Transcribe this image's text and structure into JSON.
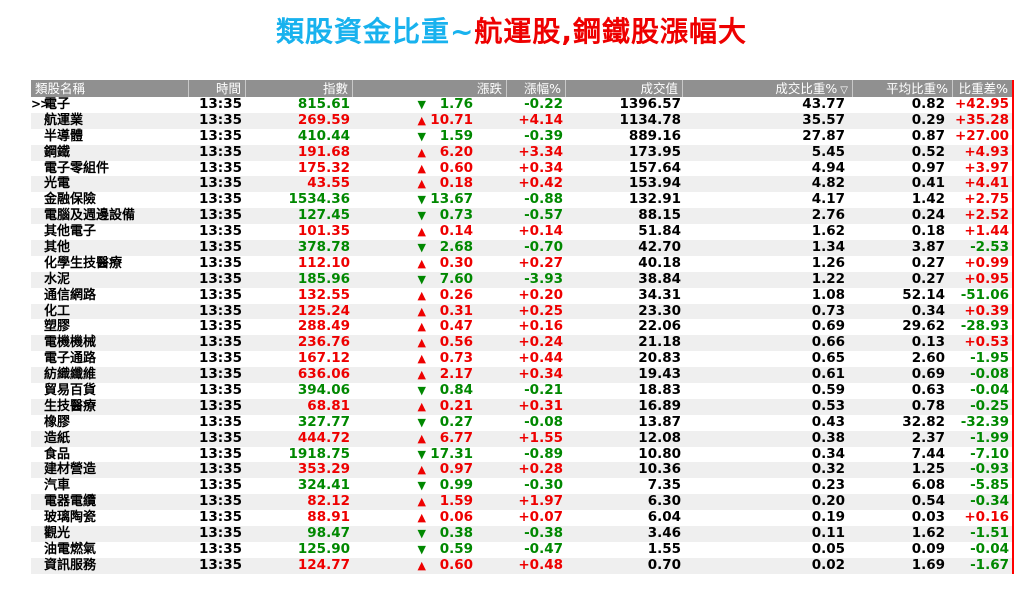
{
  "title": {
    "part1": "類股資金比重~",
    "part2": "航運股,鋼鐵股漲幅大",
    "part1_color": "#18B2EE",
    "part2_color": "#EE0000"
  },
  "table": {
    "columns": [
      {
        "label": "類股名稱"
      },
      {
        "label": "時間"
      },
      {
        "label": "指數"
      },
      {
        "label": "漲跌"
      },
      {
        "label": "漲幅%"
      },
      {
        "label": "成交值"
      },
      {
        "label": "成交比重%",
        "sorted": true
      },
      {
        "label": "平均比重%"
      },
      {
        "label": "比重差%"
      }
    ],
    "sort_indicator": "▽",
    "selected_prefix": ">>",
    "colors": {
      "up": "#EE0000",
      "down": "#008800",
      "header_bg": "#909090",
      "row_alt_bg": "#EFEFEF",
      "table_right_border": "#FF0000"
    },
    "rows": [
      {
        "name": "電子",
        "selected": true,
        "time": "13:35",
        "index": "815.61",
        "dir": "down",
        "change": "1.76",
        "change_pct": "-0.22",
        "value": "1396.57",
        "weight": "43.77",
        "avg_weight": "0.82",
        "weight_diff": "+42.95"
      },
      {
        "name": "航運業",
        "time": "13:35",
        "index": "269.59",
        "dir": "up",
        "change": "10.71",
        "change_pct": "+4.14",
        "value": "1134.78",
        "weight": "35.57",
        "avg_weight": "0.29",
        "weight_diff": "+35.28"
      },
      {
        "name": "半導體",
        "time": "13:35",
        "index": "410.44",
        "dir": "down",
        "change": "1.59",
        "change_pct": "-0.39",
        "value": "889.16",
        "weight": "27.87",
        "avg_weight": "0.87",
        "weight_diff": "+27.00"
      },
      {
        "name": "鋼鐵",
        "time": "13:35",
        "index": "191.68",
        "dir": "up",
        "change": "6.20",
        "change_pct": "+3.34",
        "value": "173.95",
        "weight": "5.45",
        "avg_weight": "0.52",
        "weight_diff": "+4.93"
      },
      {
        "name": "電子零組件",
        "time": "13:35",
        "index": "175.32",
        "dir": "up",
        "change": "0.60",
        "change_pct": "+0.34",
        "value": "157.64",
        "weight": "4.94",
        "avg_weight": "0.97",
        "weight_diff": "+3.97"
      },
      {
        "name": "光電",
        "time": "13:35",
        "index": "43.55",
        "dir": "up",
        "change": "0.18",
        "change_pct": "+0.42",
        "value": "153.94",
        "weight": "4.82",
        "avg_weight": "0.41",
        "weight_diff": "+4.41"
      },
      {
        "name": "金融保險",
        "time": "13:35",
        "index": "1534.36",
        "dir": "down",
        "change": "13.67",
        "change_pct": "-0.88",
        "value": "132.91",
        "weight": "4.17",
        "avg_weight": "1.42",
        "weight_diff": "+2.75"
      },
      {
        "name": "電腦及週邊設備",
        "time": "13:35",
        "index": "127.45",
        "dir": "down",
        "change": "0.73",
        "change_pct": "-0.57",
        "value": "88.15",
        "weight": "2.76",
        "avg_weight": "0.24",
        "weight_diff": "+2.52"
      },
      {
        "name": "其他電子",
        "time": "13:35",
        "index": "101.35",
        "dir": "up",
        "change": "0.14",
        "change_pct": "+0.14",
        "value": "51.84",
        "weight": "1.62",
        "avg_weight": "0.18",
        "weight_diff": "+1.44"
      },
      {
        "name": "其他",
        "time": "13:35",
        "index": "378.78",
        "dir": "down",
        "change": "2.68",
        "change_pct": "-0.70",
        "value": "42.70",
        "weight": "1.34",
        "avg_weight": "3.87",
        "weight_diff": "-2.53"
      },
      {
        "name": "化學生技醫療",
        "time": "13:35",
        "index": "112.10",
        "dir": "up",
        "change": "0.30",
        "change_pct": "+0.27",
        "value": "40.18",
        "weight": "1.26",
        "avg_weight": "0.27",
        "weight_diff": "+0.99"
      },
      {
        "name": "水泥",
        "time": "13:35",
        "index": "185.96",
        "dir": "down",
        "change": "7.60",
        "change_pct": "-3.93",
        "value": "38.84",
        "weight": "1.22",
        "avg_weight": "0.27",
        "weight_diff": "+0.95"
      },
      {
        "name": "通信網路",
        "time": "13:35",
        "index": "132.55",
        "dir": "up",
        "change": "0.26",
        "change_pct": "+0.20",
        "value": "34.31",
        "weight": "1.08",
        "avg_weight": "52.14",
        "weight_diff": "-51.06"
      },
      {
        "name": "化工",
        "time": "13:35",
        "index": "125.24",
        "dir": "up",
        "change": "0.31",
        "change_pct": "+0.25",
        "value": "23.30",
        "weight": "0.73",
        "avg_weight": "0.34",
        "weight_diff": "+0.39"
      },
      {
        "name": "塑膠",
        "time": "13:35",
        "index": "288.49",
        "dir": "up",
        "change": "0.47",
        "change_pct": "+0.16",
        "value": "22.06",
        "weight": "0.69",
        "avg_weight": "29.62",
        "weight_diff": "-28.93"
      },
      {
        "name": "電機機械",
        "time": "13:35",
        "index": "236.76",
        "dir": "up",
        "change": "0.56",
        "change_pct": "+0.24",
        "value": "21.18",
        "weight": "0.66",
        "avg_weight": "0.13",
        "weight_diff": "+0.53"
      },
      {
        "name": "電子通路",
        "time": "13:35",
        "index": "167.12",
        "dir": "up",
        "change": "0.73",
        "change_pct": "+0.44",
        "value": "20.83",
        "weight": "0.65",
        "avg_weight": "2.60",
        "weight_diff": "-1.95"
      },
      {
        "name": "紡織纖維",
        "time": "13:35",
        "index": "636.06",
        "dir": "up",
        "change": "2.17",
        "change_pct": "+0.34",
        "value": "19.43",
        "weight": "0.61",
        "avg_weight": "0.69",
        "weight_diff": "-0.08"
      },
      {
        "name": "貿易百貨",
        "time": "13:35",
        "index": "394.06",
        "dir": "down",
        "change": "0.84",
        "change_pct": "-0.21",
        "value": "18.83",
        "weight": "0.59",
        "avg_weight": "0.63",
        "weight_diff": "-0.04"
      },
      {
        "name": "生技醫療",
        "time": "13:35",
        "index": "68.81",
        "dir": "up",
        "change": "0.21",
        "change_pct": "+0.31",
        "value": "16.89",
        "weight": "0.53",
        "avg_weight": "0.78",
        "weight_diff": "-0.25"
      },
      {
        "name": "橡膠",
        "time": "13:35",
        "index": "327.77",
        "dir": "down",
        "change": "0.27",
        "change_pct": "-0.08",
        "value": "13.87",
        "weight": "0.43",
        "avg_weight": "32.82",
        "weight_diff": "-32.39"
      },
      {
        "name": "造紙",
        "time": "13:35",
        "index": "444.72",
        "dir": "up",
        "change": "6.77",
        "change_pct": "+1.55",
        "value": "12.08",
        "weight": "0.38",
        "avg_weight": "2.37",
        "weight_diff": "-1.99"
      },
      {
        "name": "食品",
        "time": "13:35",
        "index": "1918.75",
        "dir": "down",
        "change": "17.31",
        "change_pct": "-0.89",
        "value": "10.80",
        "weight": "0.34",
        "avg_weight": "7.44",
        "weight_diff": "-7.10"
      },
      {
        "name": "建材營造",
        "time": "13:35",
        "index": "353.29",
        "dir": "up",
        "change": "0.97",
        "change_pct": "+0.28",
        "value": "10.36",
        "weight": "0.32",
        "avg_weight": "1.25",
        "weight_diff": "-0.93"
      },
      {
        "name": "汽車",
        "time": "13:35",
        "index": "324.41",
        "dir": "down",
        "change": "0.99",
        "change_pct": "-0.30",
        "value": "7.35",
        "weight": "0.23",
        "avg_weight": "6.08",
        "weight_diff": "-5.85"
      },
      {
        "name": "電器電纜",
        "time": "13:35",
        "index": "82.12",
        "dir": "up",
        "change": "1.59",
        "change_pct": "+1.97",
        "value": "6.30",
        "weight": "0.20",
        "avg_weight": "0.54",
        "weight_diff": "-0.34"
      },
      {
        "name": "玻璃陶瓷",
        "time": "13:35",
        "index": "88.91",
        "dir": "up",
        "change": "0.06",
        "change_pct": "+0.07",
        "value": "6.04",
        "weight": "0.19",
        "avg_weight": "0.03",
        "weight_diff": "+0.16"
      },
      {
        "name": "觀光",
        "time": "13:35",
        "index": "98.47",
        "dir": "down",
        "change": "0.38",
        "change_pct": "-0.38",
        "value": "3.46",
        "weight": "0.11",
        "avg_weight": "1.62",
        "weight_diff": "-1.51"
      },
      {
        "name": "油電燃氣",
        "time": "13:35",
        "index": "125.90",
        "dir": "down",
        "change": "0.59",
        "change_pct": "-0.47",
        "value": "1.55",
        "weight": "0.05",
        "avg_weight": "0.09",
        "weight_diff": "-0.04"
      },
      {
        "name": "資訊服務",
        "time": "13:35",
        "index": "124.77",
        "dir": "up",
        "change": "0.60",
        "change_pct": "+0.48",
        "value": "0.70",
        "weight": "0.02",
        "avg_weight": "1.69",
        "weight_diff": "-1.67"
      }
    ]
  }
}
